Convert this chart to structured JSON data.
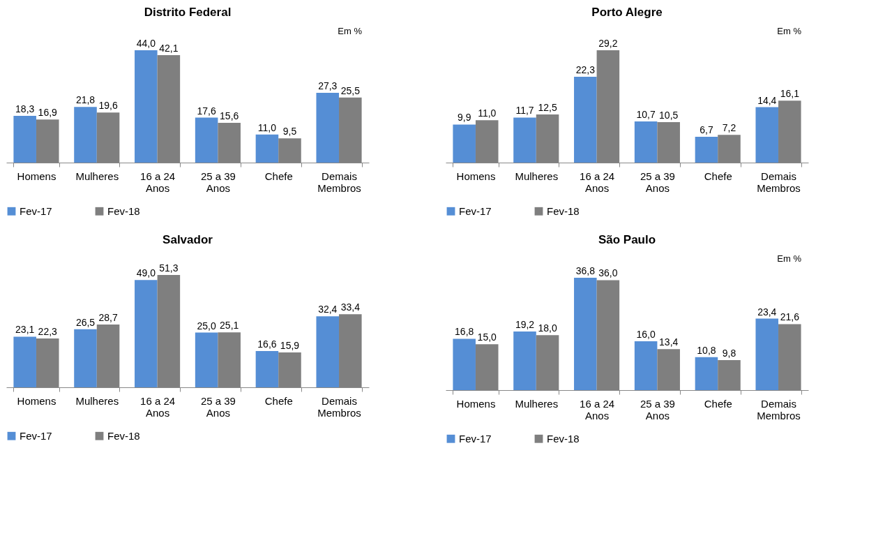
{
  "chart_data": [
    {
      "type": "bar",
      "title": "Distrito Federal",
      "categories": [
        "Homens",
        "Mulheres",
        "16 a 24 Anos",
        "25 a 39 Anos",
        "Chefe",
        "Demais Membros"
      ],
      "series": [
        {
          "name": "Fev-17",
          "color": "#558ed5",
          "values": [
            18.3,
            21.8,
            44.0,
            17.6,
            11.0,
            27.3
          ],
          "value_labels": [
            "18,3",
            "21,8",
            "44,0",
            "17,6",
            "11,0",
            "27,3"
          ]
        },
        {
          "name": "Fev-18",
          "color": "#7f7f7f",
          "values": [
            16.9,
            19.6,
            42.1,
            15.6,
            9.5,
            25.5
          ],
          "value_labels": [
            "16,9",
            "19,6",
            "42,1",
            "15,6",
            "9,5",
            "25,5"
          ]
        }
      ],
      "legend": "bottom",
      "tick_labels": "x",
      "annotations": [
        "Em %"
      ]
    },
    {
      "type": "bar",
      "title": "Porto Alegre",
      "categories": [
        "Homens",
        "Mulheres",
        "16 a 24 Anos",
        "25 a 39 Anos",
        "Chefe",
        "Demais Membros"
      ],
      "series": [
        {
          "name": "Fev-17",
          "color": "#558ed5",
          "values": [
            9.9,
            11.7,
            22.3,
            10.7,
            6.7,
            14.4
          ],
          "value_labels": [
            "9,9",
            "11,7",
            "22,3",
            "10,7",
            "6,7",
            "14,4"
          ]
        },
        {
          "name": "Fev-18",
          "color": "#7f7f7f",
          "values": [
            11.0,
            12.5,
            29.2,
            10.5,
            7.2,
            16.1
          ],
          "value_labels": [
            "11,0",
            "12,5",
            "29,2",
            "10,5",
            "7,2",
            "16,1"
          ]
        }
      ],
      "legend": "bottom",
      "tick_labels": "x",
      "annotations": [
        "Em %"
      ]
    },
    {
      "type": "bar",
      "title": "Salvador",
      "categories": [
        "Homens",
        "Mulheres",
        "16 a 24 Anos",
        "25 a 39 Anos",
        "Chefe",
        "Demais Membros"
      ],
      "series": [
        {
          "name": "Fev-17",
          "color": "#558ed5",
          "values": [
            23.1,
            26.5,
            49.0,
            25.0,
            16.6,
            32.4
          ],
          "value_labels": [
            "23,1",
            "26,5",
            "49,0",
            "25,0",
            "16,6",
            "32,4"
          ]
        },
        {
          "name": "Fev-18",
          "color": "#7f7f7f",
          "values": [
            22.3,
            28.7,
            51.3,
            25.1,
            15.9,
            33.4
          ],
          "value_labels": [
            "22,3",
            "28,7",
            "51,3",
            "25,1",
            "15,9",
            "33,4"
          ]
        }
      ],
      "legend": "bottom",
      "tick_labels": "x"
    },
    {
      "type": "bar",
      "title": "São Paulo",
      "categories": [
        "Homens",
        "Mulheres",
        "16 a 24 Anos",
        "25 a 39 Anos",
        "Chefe",
        "Demais Membros"
      ],
      "series": [
        {
          "name": "Fev-17",
          "color": "#558ed5",
          "values": [
            16.8,
            19.2,
            36.8,
            16.0,
            10.8,
            23.4
          ],
          "value_labels": [
            "16,8",
            "19,2",
            "36,8",
            "16,0",
            "10,8",
            "23,4"
          ]
        },
        {
          "name": "Fev-18",
          "color": "#7f7f7f",
          "values": [
            15.0,
            18.0,
            36.0,
            13.4,
            9.8,
            21.6
          ],
          "value_labels": [
            "15,0",
            "18,0",
            "36,0",
            "13,4",
            "9,8",
            "21,6"
          ]
        }
      ],
      "legend": "bottom",
      "tick_labels": "x",
      "annotations": [
        "Em %"
      ]
    }
  ]
}
